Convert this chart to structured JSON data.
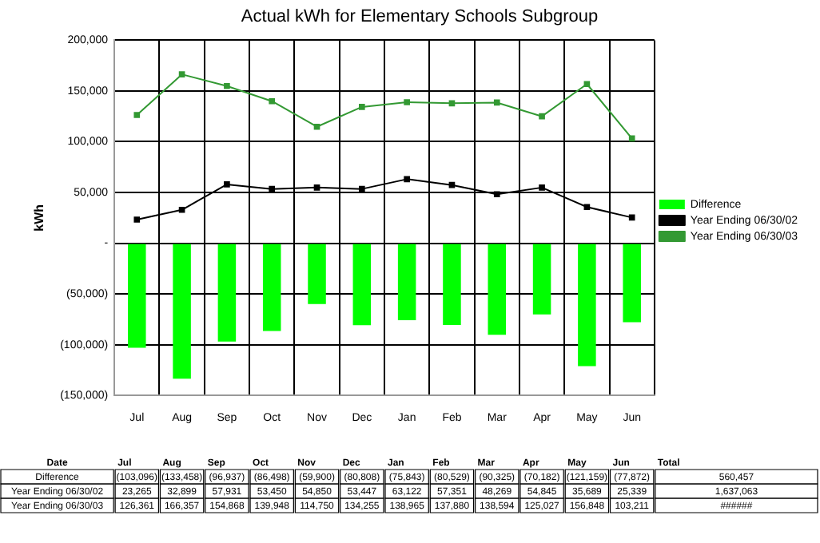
{
  "chart_data": {
    "type": "bar",
    "title": "Actual kWh for Elementary Schools Subgroup",
    "ylabel": "kWh",
    "categories": [
      "Jul",
      "Aug",
      "Sep",
      "Oct",
      "Nov",
      "Dec",
      "Jan",
      "Feb",
      "Mar",
      "Apr",
      "May",
      "Jun"
    ],
    "series": [
      {
        "name": "Difference",
        "color": "#00ff00",
        "values": [
          -103096,
          -133458,
          -96937,
          -86498,
          -59900,
          -80808,
          -75843,
          -80529,
          -90325,
          -70182,
          -121159,
          -77872
        ],
        "value_labels": [
          "(103,096)",
          "(133,458)",
          "(96,937)",
          "(86,498)",
          "(59,900)",
          "(80,808)",
          "(75,843)",
          "(80,529)",
          "(90,325)",
          "(70,182)",
          "(121,159)",
          "(77,872)"
        ]
      },
      {
        "name": "Year Ending 06/30/02",
        "type": "line",
        "color": "#000000",
        "values": [
          23265,
          32899,
          57931,
          53450,
          54850,
          53447,
          63122,
          57351,
          48269,
          54845,
          35689,
          25339
        ],
        "value_labels": [
          "23,265",
          "32,899",
          "57,931",
          "53,450",
          "54,850",
          "53,447",
          "63,122",
          "57,351",
          "48,269",
          "54,845",
          "35,689",
          "25,339"
        ]
      },
      {
        "name": "Year Ending 06/30/03",
        "type": "line",
        "color": "#339933",
        "values": [
          126361,
          166357,
          154868,
          139948,
          114750,
          134255,
          138965,
          137880,
          138594,
          125027,
          156848,
          103211
        ],
        "value_labels": [
          "126,361",
          "166,357",
          "154,868",
          "139,948",
          "114,750",
          "134,255",
          "138,965",
          "137,880",
          "138,594",
          "125,027",
          "156,848",
          "103,211"
        ]
      }
    ],
    "ylim": [
      -150000,
      200000
    ],
    "yticks": [
      {
        "value": -150000,
        "label": "(150,000)"
      },
      {
        "value": -100000,
        "label": "(100,000)"
      },
      {
        "value": -50000,
        "label": "(50,000)"
      },
      {
        "value": 0,
        "label": "-"
      },
      {
        "value": 50000,
        "label": "50,000"
      },
      {
        "value": 100000,
        "label": "100,000"
      },
      {
        "value": 150000,
        "label": "150,000"
      },
      {
        "value": 200000,
        "label": "200,000"
      }
    ],
    "grid": true,
    "legend": "right",
    "marker": "square",
    "line_style": "solid",
    "annotations": [
      "Date",
      "Total",
      "560,457",
      "1,637,063",
      "######"
    ]
  }
}
